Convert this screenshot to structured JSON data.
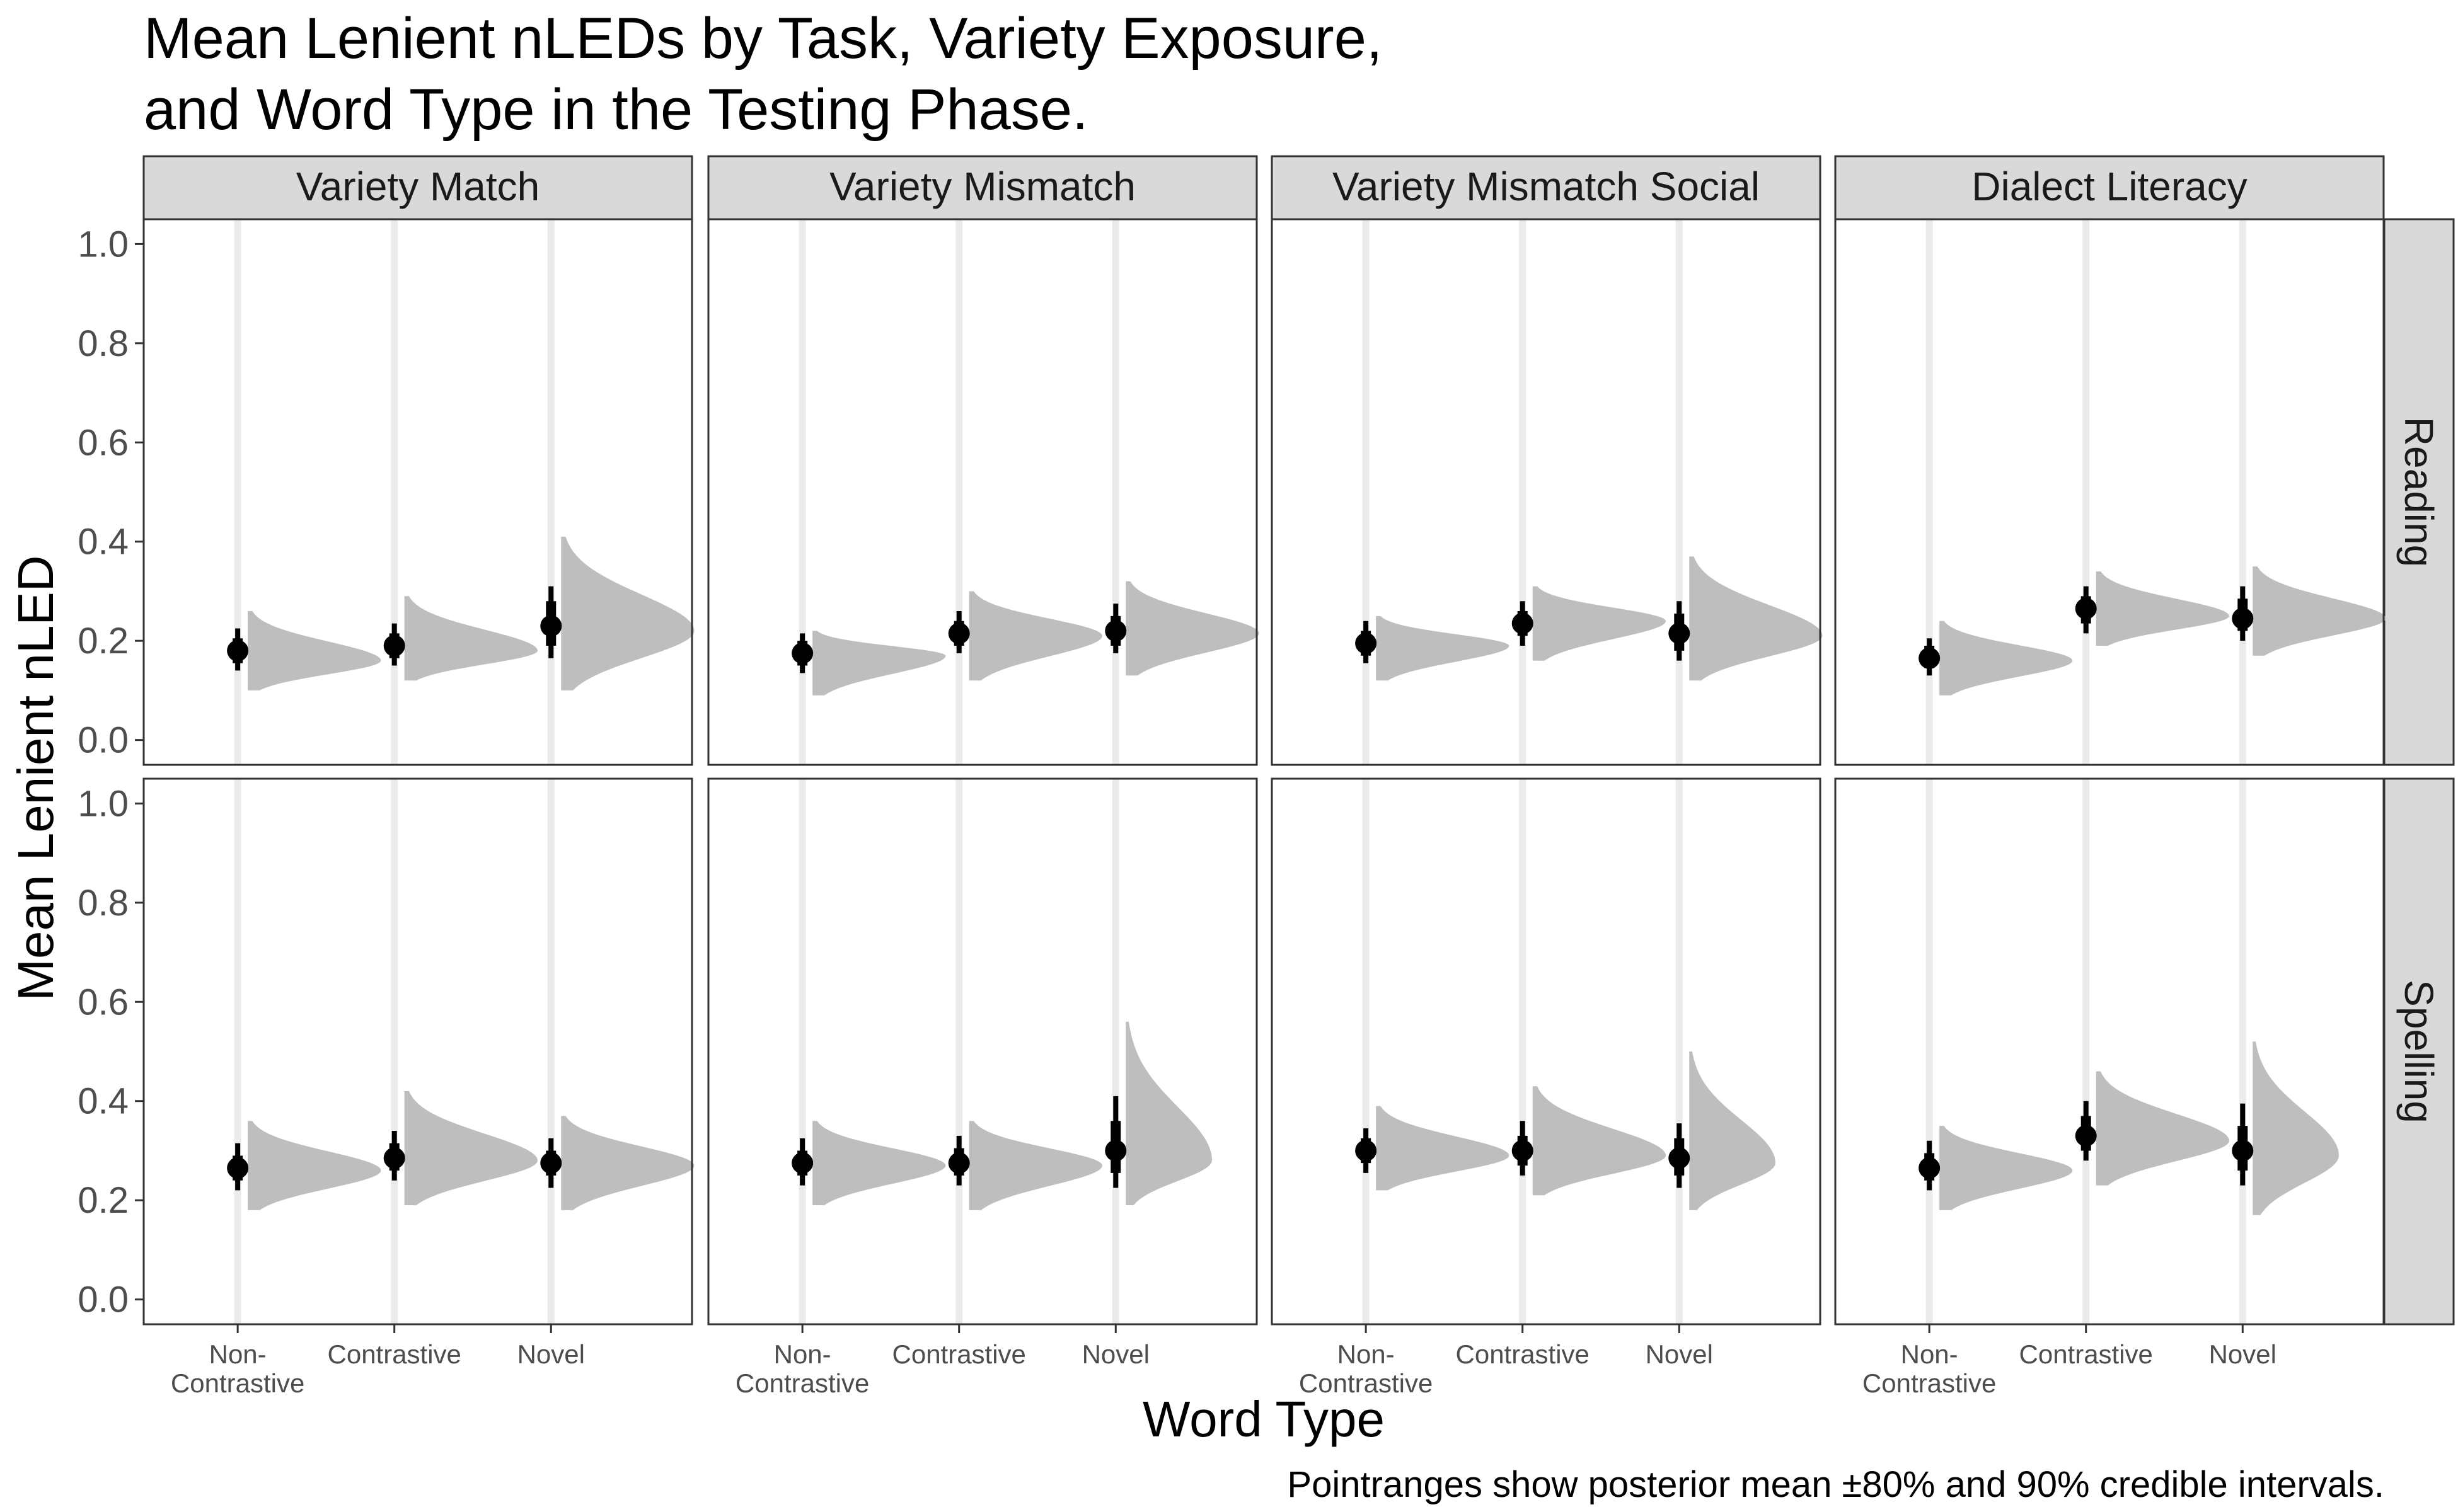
{
  "chart_data": {
    "type": "pointrange",
    "title_lines": [
      "Mean Lenient nLEDs by Task, Variety Exposure,",
      "and Word Type in the Testing Phase."
    ],
    "xlabel": "Word Type",
    "ylabel": "Mean Lenient nLED",
    "caption": "Pointranges show posterior mean ±80% and 90% credible intervals.",
    "ylim": [
      -0.05,
      1.05
    ],
    "yticks": [
      "0.0",
      "0.2",
      "0.4",
      "0.6",
      "0.8",
      "1.0"
    ],
    "ytick_values": [
      0,
      0.2,
      0.4,
      0.6,
      0.8,
      1.0
    ],
    "grid": false,
    "columns": [
      "Variety Match",
      "Variety Mismatch",
      "Variety Mismatch Social",
      "Dialect Literacy"
    ],
    "rows": [
      "Reading",
      "Spelling"
    ],
    "categories": [
      [
        "Non-",
        "Contrastive"
      ],
      [
        "Contrastive"
      ],
      [
        "Novel"
      ]
    ],
    "colors": {
      "point": "#000000",
      "distribution": "#bebebe",
      "guide": "#ebebeb",
      "strip": "#d9d9d9"
    },
    "panels": [
      {
        "row": "Reading",
        "column": "Variety Match",
        "points": [
          {
            "x": "Non-Contrastive",
            "mean": 0.18,
            "i80": [
              0.155,
              0.205
            ],
            "i90": [
              0.14,
              0.225
            ],
            "dist_lo": 0.1,
            "dist_hi": 0.26,
            "dist_peak": 0.16,
            "dist_w": 0.85
          },
          {
            "x": "Contrastive",
            "mean": 0.19,
            "i80": [
              0.165,
              0.215
            ],
            "i90": [
              0.15,
              0.235
            ],
            "dist_lo": 0.12,
            "dist_hi": 0.29,
            "dist_peak": 0.18,
            "dist_w": 0.85
          },
          {
            "x": "Novel",
            "mean": 0.23,
            "i80": [
              0.19,
              0.28
            ],
            "i90": [
              0.165,
              0.31
            ],
            "dist_lo": 0.1,
            "dist_hi": 0.41,
            "dist_peak": 0.22,
            "dist_w": 0.85
          }
        ]
      },
      {
        "row": "Reading",
        "column": "Variety Mismatch",
        "points": [
          {
            "x": "Non-Contrastive",
            "mean": 0.175,
            "i80": [
              0.15,
              0.2
            ],
            "i90": [
              0.135,
              0.215
            ],
            "dist_lo": 0.09,
            "dist_hi": 0.22,
            "dist_peak": 0.17,
            "dist_w": 0.85
          },
          {
            "x": "Contrastive",
            "mean": 0.215,
            "i80": [
              0.19,
              0.24
            ],
            "i90": [
              0.175,
              0.26
            ],
            "dist_lo": 0.12,
            "dist_hi": 0.3,
            "dist_peak": 0.21,
            "dist_w": 0.85
          },
          {
            "x": "Novel",
            "mean": 0.22,
            "i80": [
              0.19,
              0.25
            ],
            "i90": [
              0.175,
              0.275
            ],
            "dist_lo": 0.13,
            "dist_hi": 0.32,
            "dist_peak": 0.215,
            "dist_w": 0.85
          }
        ]
      },
      {
        "row": "Reading",
        "column": "Variety Mismatch Social",
        "points": [
          {
            "x": "Non-Contrastive",
            "mean": 0.195,
            "i80": [
              0.17,
              0.22
            ],
            "i90": [
              0.155,
              0.24
            ],
            "dist_lo": 0.12,
            "dist_hi": 0.25,
            "dist_peak": 0.19,
            "dist_w": 0.85
          },
          {
            "x": "Contrastive",
            "mean": 0.235,
            "i80": [
              0.21,
              0.26
            ],
            "i90": [
              0.19,
              0.28
            ],
            "dist_lo": 0.16,
            "dist_hi": 0.31,
            "dist_peak": 0.24,
            "dist_w": 0.85
          },
          {
            "x": "Novel",
            "mean": 0.215,
            "i80": [
              0.18,
              0.255
            ],
            "i90": [
              0.16,
              0.28
            ],
            "dist_lo": 0.12,
            "dist_hi": 0.37,
            "dist_peak": 0.21,
            "dist_w": 0.85
          }
        ]
      },
      {
        "row": "Reading",
        "column": "Dialect Literacy",
        "points": [
          {
            "x": "Non-Contrastive",
            "mean": 0.165,
            "i80": [
              0.145,
              0.19
            ],
            "i90": [
              0.13,
              0.205
            ],
            "dist_lo": 0.09,
            "dist_hi": 0.24,
            "dist_peak": 0.16,
            "dist_w": 0.85
          },
          {
            "x": "Contrastive",
            "mean": 0.265,
            "i80": [
              0.235,
              0.29
            ],
            "i90": [
              0.215,
              0.31
            ],
            "dist_lo": 0.19,
            "dist_hi": 0.34,
            "dist_peak": 0.25,
            "dist_w": 0.85
          },
          {
            "x": "Novel",
            "mean": 0.245,
            "i80": [
              0.22,
              0.285
            ],
            "i90": [
              0.2,
              0.31
            ],
            "dist_lo": 0.17,
            "dist_hi": 0.35,
            "dist_peak": 0.245,
            "dist_w": 0.85
          }
        ]
      },
      {
        "row": "Spelling",
        "column": "Variety Match",
        "points": [
          {
            "x": "Non-Contrastive",
            "mean": 0.265,
            "i80": [
              0.24,
              0.29
            ],
            "i90": [
              0.22,
              0.315
            ],
            "dist_lo": 0.18,
            "dist_hi": 0.36,
            "dist_peak": 0.26,
            "dist_w": 0.85
          },
          {
            "x": "Contrastive",
            "mean": 0.285,
            "i80": [
              0.26,
              0.315
            ],
            "i90": [
              0.24,
              0.34
            ],
            "dist_lo": 0.19,
            "dist_hi": 0.42,
            "dist_peak": 0.28,
            "dist_w": 0.85
          },
          {
            "x": "Novel",
            "mean": 0.275,
            "i80": [
              0.25,
              0.3
            ],
            "i90": [
              0.225,
              0.325
            ],
            "dist_lo": 0.18,
            "dist_hi": 0.37,
            "dist_peak": 0.27,
            "dist_w": 0.85
          }
        ]
      },
      {
        "row": "Spelling",
        "column": "Variety Mismatch",
        "points": [
          {
            "x": "Non-Contrastive",
            "mean": 0.275,
            "i80": [
              0.25,
              0.3
            ],
            "i90": [
              0.23,
              0.325
            ],
            "dist_lo": 0.19,
            "dist_hi": 0.36,
            "dist_peak": 0.27,
            "dist_w": 0.85
          },
          {
            "x": "Contrastive",
            "mean": 0.275,
            "i80": [
              0.25,
              0.305
            ],
            "i90": [
              0.23,
              0.33
            ],
            "dist_lo": 0.18,
            "dist_hi": 0.36,
            "dist_peak": 0.27,
            "dist_w": 0.85
          },
          {
            "x": "Novel",
            "mean": 0.3,
            "i80": [
              0.255,
              0.36
            ],
            "i90": [
              0.225,
              0.41
            ],
            "dist_lo": 0.19,
            "dist_hi": 0.56,
            "dist_peak": 0.28,
            "dist_w": 0.55
          }
        ]
      },
      {
        "row": "Spelling",
        "column": "Variety Mismatch Social",
        "points": [
          {
            "x": "Non-Contrastive",
            "mean": 0.3,
            "i80": [
              0.275,
              0.325
            ],
            "i90": [
              0.255,
              0.345
            ],
            "dist_lo": 0.22,
            "dist_hi": 0.39,
            "dist_peak": 0.29,
            "dist_w": 0.85
          },
          {
            "x": "Contrastive",
            "mean": 0.3,
            "i80": [
              0.27,
              0.33
            ],
            "i90": [
              0.25,
              0.36
            ],
            "dist_lo": 0.21,
            "dist_hi": 0.43,
            "dist_peak": 0.29,
            "dist_w": 0.85
          },
          {
            "x": "Novel",
            "mean": 0.285,
            "i80": [
              0.25,
              0.325
            ],
            "i90": [
              0.225,
              0.355
            ],
            "dist_lo": 0.18,
            "dist_hi": 0.5,
            "dist_peak": 0.275,
            "dist_w": 0.55
          }
        ]
      },
      {
        "row": "Spelling",
        "column": "Dialect Literacy",
        "points": [
          {
            "x": "Non-Contrastive",
            "mean": 0.265,
            "i80": [
              0.24,
              0.295
            ],
            "i90": [
              0.22,
              0.32
            ],
            "dist_lo": 0.18,
            "dist_hi": 0.35,
            "dist_peak": 0.26,
            "dist_w": 0.85
          },
          {
            "x": "Contrastive",
            "mean": 0.33,
            "i80": [
              0.3,
              0.37
            ],
            "i90": [
              0.28,
              0.4
            ],
            "dist_lo": 0.23,
            "dist_hi": 0.46,
            "dist_peak": 0.32,
            "dist_w": 0.85
          },
          {
            "x": "Novel",
            "mean": 0.3,
            "i80": [
              0.26,
              0.35
            ],
            "i90": [
              0.23,
              0.395
            ],
            "dist_lo": 0.17,
            "dist_hi": 0.52,
            "dist_peak": 0.29,
            "dist_w": 0.55
          }
        ]
      }
    ]
  }
}
